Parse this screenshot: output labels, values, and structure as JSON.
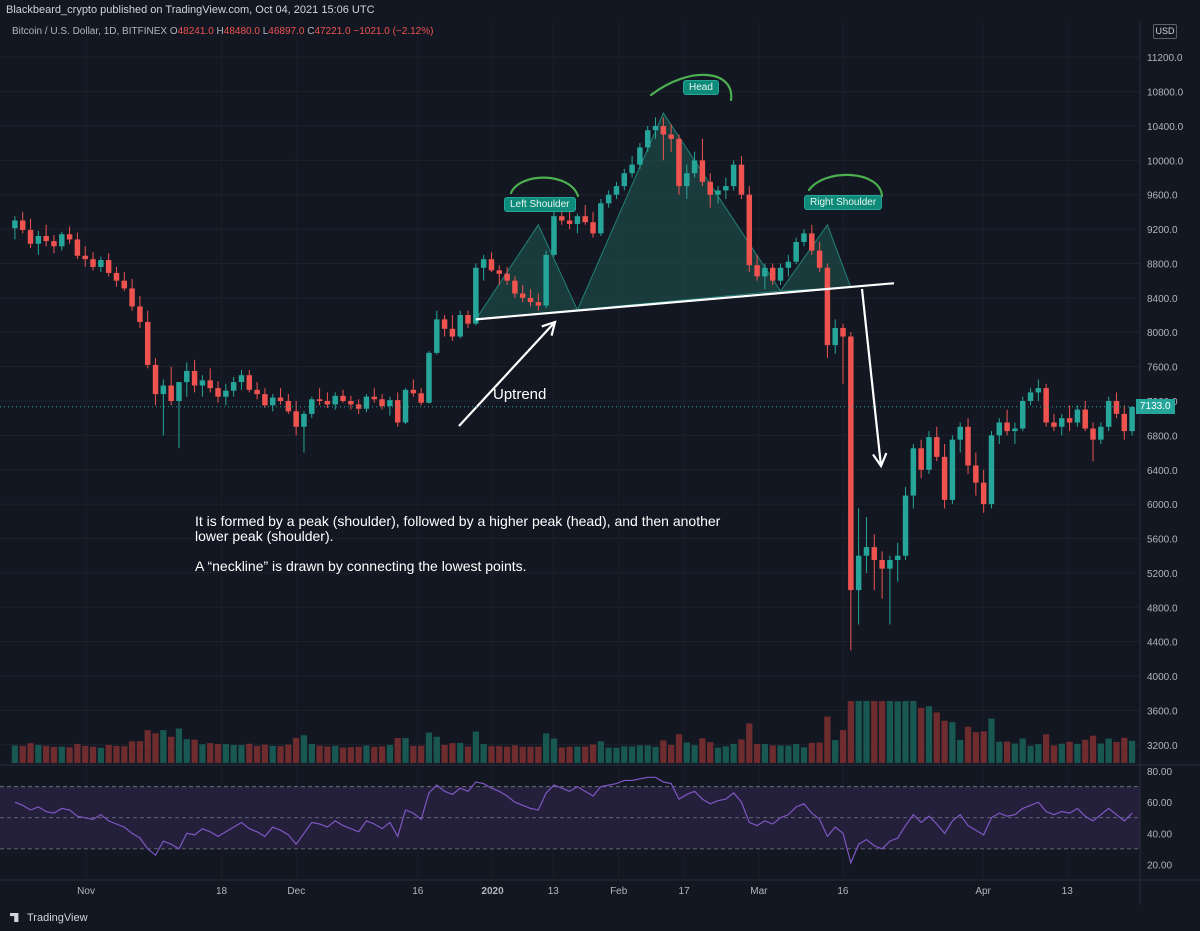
{
  "header": {
    "publisher_text": "Blackbeard_crypto published on TradingView.com, Oct 04, 2021 15:06 UTC"
  },
  "legend": {
    "symbol": "Bitcoin / U.S. Dollar, 1D, BITFINEX",
    "open_label": "O",
    "open": "48241.0",
    "high_label": "H",
    "high": "48480.0",
    "low_label": "L",
    "low": "46897.0",
    "close_label": "C",
    "close": "47221.0",
    "change": "−1021.0 (−2.12%)"
  },
  "currency_button": "USD",
  "last_price_tag": "7133.0",
  "branding": "TradingView",
  "annotations": {
    "left_shoulder": "Left Shoulder",
    "head": "Head",
    "right_shoulder": "Right Shoulder",
    "uptrend": "Uptrend",
    "note_line1": "It is formed by a peak (shoulder), followed by a higher peak (head), and then another lower peak (shoulder).",
    "note_line2": "A “neckline” is drawn by connecting the lowest points."
  },
  "colors": {
    "background": "#131722",
    "up": "#26a69a",
    "down": "#ef5350",
    "pattern_fill": "#1f4f4c",
    "rsi_line": "#7e57c2",
    "rsi_band": "#241f3a",
    "arc": "#4caf50"
  },
  "chart_data": {
    "type": "candlestick",
    "price_axis": {
      "ticks": [
        "11200.0",
        "10800.0",
        "10400.0",
        "10000.0",
        "9600.0",
        "9200.0",
        "8800.0",
        "8400.0",
        "8000.0",
        "7600.0",
        "7200.0",
        "6800.0",
        "6400.0",
        "6000.0",
        "5600.0",
        "5200.0",
        "4800.0",
        "4400.0",
        "4000.0",
        "3600.0",
        "3200.0"
      ],
      "range": [
        3000,
        11400
      ]
    },
    "rsi_axis": {
      "ticks": [
        "80.00",
        "60.00",
        "40.00",
        "20.00"
      ],
      "range": [
        10,
        82
      ],
      "bands": [
        30,
        70
      ]
    },
    "time_axis": {
      "ticks": [
        "Nov",
        "18",
        "Dec",
        "16",
        "2020",
        "13",
        "Feb",
        "17",
        "Mar",
        "16",
        "Apr",
        "13"
      ],
      "bold": [
        "2020"
      ]
    },
    "price_series": [
      [
        9210,
        9350,
        9080,
        9300
      ],
      [
        9300,
        9400,
        9150,
        9190
      ],
      [
        9190,
        9320,
        8980,
        9030
      ],
      [
        9030,
        9180,
        8900,
        9120
      ],
      [
        9120,
        9250,
        9000,
        9060
      ],
      [
        9060,
        9130,
        8920,
        9000
      ],
      [
        9000,
        9170,
        8950,
        9140
      ],
      [
        9140,
        9230,
        9030,
        9080
      ],
      [
        9080,
        9160,
        8850,
        8890
      ],
      [
        8890,
        9000,
        8760,
        8850
      ],
      [
        8850,
        8930,
        8720,
        8760
      ],
      [
        8760,
        8880,
        8700,
        8840
      ],
      [
        8840,
        8920,
        8650,
        8690
      ],
      [
        8690,
        8760,
        8530,
        8600
      ],
      [
        8600,
        8700,
        8480,
        8510
      ],
      [
        8510,
        8620,
        8250,
        8300
      ],
      [
        8300,
        8420,
        8050,
        8120
      ],
      [
        8120,
        8250,
        7580,
        7620
      ],
      [
        7620,
        7700,
        7150,
        7280
      ],
      [
        7280,
        7450,
        6800,
        7380
      ],
      [
        7380,
        7600,
        7150,
        7200
      ],
      [
        7200,
        7350,
        6650,
        7420
      ],
      [
        7420,
        7650,
        7250,
        7550
      ],
      [
        7550,
        7680,
        7300,
        7380
      ],
      [
        7380,
        7500,
        7250,
        7440
      ],
      [
        7440,
        7580,
        7300,
        7350
      ],
      [
        7350,
        7430,
        7180,
        7250
      ],
      [
        7250,
        7400,
        7150,
        7320
      ],
      [
        7320,
        7480,
        7250,
        7420
      ],
      [
        7420,
        7560,
        7330,
        7500
      ],
      [
        7500,
        7560,
        7300,
        7330
      ],
      [
        7330,
        7420,
        7220,
        7280
      ],
      [
        7280,
        7350,
        7120,
        7150
      ],
      [
        7150,
        7280,
        7080,
        7240
      ],
      [
        7240,
        7350,
        7160,
        7200
      ],
      [
        7200,
        7280,
        7050,
        7080
      ],
      [
        7080,
        7200,
        6800,
        6900
      ],
      [
        6900,
        7080,
        6600,
        7050
      ],
      [
        7050,
        7250,
        7000,
        7220
      ],
      [
        7220,
        7350,
        7150,
        7200
      ],
      [
        7200,
        7300,
        7120,
        7160
      ],
      [
        7160,
        7300,
        7100,
        7260
      ],
      [
        7260,
        7330,
        7180,
        7200
      ],
      [
        7200,
        7260,
        7100,
        7160
      ],
      [
        7160,
        7220,
        7050,
        7110
      ],
      [
        7110,
        7280,
        7070,
        7250
      ],
      [
        7250,
        7350,
        7180,
        7220
      ],
      [
        7220,
        7280,
        7100,
        7140
      ],
      [
        7140,
        7250,
        7030,
        7210
      ],
      [
        7210,
        7300,
        6900,
        6950
      ],
      [
        6950,
        7350,
        6930,
        7330
      ],
      [
        7330,
        7450,
        7250,
        7290
      ],
      [
        7290,
        7350,
        7150,
        7180
      ],
      [
        7180,
        7780,
        7170,
        7760
      ],
      [
        7760,
        8250,
        7740,
        8150
      ],
      [
        8150,
        8200,
        7950,
        8040
      ],
      [
        8040,
        8200,
        7900,
        7950
      ],
      [
        7950,
        8250,
        7930,
        8200
      ],
      [
        8200,
        8250,
        8050,
        8100
      ],
      [
        8100,
        8800,
        8080,
        8750
      ],
      [
        8750,
        8900,
        8600,
        8850
      ],
      [
        8850,
        8930,
        8700,
        8720
      ],
      [
        8720,
        8780,
        8550,
        8680
      ],
      [
        8680,
        8760,
        8550,
        8600
      ],
      [
        8600,
        8650,
        8400,
        8450
      ],
      [
        8450,
        8550,
        8350,
        8400
      ],
      [
        8400,
        8500,
        8300,
        8350
      ],
      [
        8350,
        8450,
        8250,
        8310
      ],
      [
        8310,
        8950,
        8280,
        8900
      ],
      [
        8900,
        9400,
        8880,
        9350
      ],
      [
        9350,
        9450,
        9250,
        9300
      ],
      [
        9300,
        9420,
        9200,
        9260
      ],
      [
        9260,
        9380,
        9150,
        9350
      ],
      [
        9350,
        9480,
        9250,
        9280
      ],
      [
        9280,
        9400,
        9100,
        9150
      ],
      [
        9150,
        9550,
        9120,
        9500
      ],
      [
        9500,
        9650,
        9450,
        9600
      ],
      [
        9600,
        9750,
        9550,
        9700
      ],
      [
        9700,
        9900,
        9650,
        9850
      ],
      [
        9850,
        10050,
        9800,
        9950
      ],
      [
        9950,
        10200,
        9900,
        10150
      ],
      [
        10150,
        10400,
        10100,
        10350
      ],
      [
        10350,
        10500,
        10250,
        10400
      ],
      [
        10400,
        10500,
        10000,
        10300
      ],
      [
        10300,
        10420,
        10100,
        10250
      ],
      [
        10250,
        10300,
        9600,
        9700
      ],
      [
        9700,
        9950,
        9550,
        9850
      ],
      [
        9850,
        10100,
        9800,
        10000
      ],
      [
        10000,
        10250,
        9700,
        9750
      ],
      [
        9750,
        9850,
        9450,
        9600
      ],
      [
        9600,
        9700,
        9500,
        9650
      ],
      [
        9650,
        9800,
        9550,
        9700
      ],
      [
        9700,
        10000,
        9650,
        9950
      ],
      [
        9950,
        10050,
        9550,
        9600
      ],
      [
        9600,
        9700,
        8700,
        8780
      ],
      [
        8780,
        8900,
        8600,
        8650
      ],
      [
        8650,
        8800,
        8500,
        8750
      ],
      [
        8750,
        8800,
        8550,
        8600
      ],
      [
        8600,
        8800,
        8550,
        8750
      ],
      [
        8750,
        8900,
        8650,
        8820
      ],
      [
        8820,
        9100,
        8790,
        9050
      ],
      [
        9050,
        9200,
        9000,
        9150
      ],
      [
        9150,
        9250,
        8900,
        8950
      ],
      [
        8950,
        9050,
        8700,
        8750
      ],
      [
        8750,
        8800,
        7700,
        7850
      ],
      [
        7850,
        8150,
        7750,
        8050
      ],
      [
        8050,
        8100,
        7400,
        7950
      ],
      [
        7950,
        8000,
        4300,
        5000
      ],
      [
        5000,
        5950,
        4600,
        5400
      ],
      [
        5400,
        5850,
        5200,
        5500
      ],
      [
        5500,
        5650,
        5000,
        5350
      ],
      [
        5350,
        5450,
        4900,
        5250
      ],
      [
        5250,
        5400,
        4600,
        5350
      ],
      [
        5350,
        5550,
        5100,
        5400
      ],
      [
        5400,
        6200,
        5350,
        6100
      ],
      [
        6100,
        6700,
        5950,
        6650
      ],
      [
        6650,
        6750,
        6300,
        6400
      ],
      [
        6400,
        6850,
        6350,
        6780
      ],
      [
        6780,
        6900,
        6500,
        6550
      ],
      [
        6550,
        6700,
        5950,
        6050
      ],
      [
        6050,
        6800,
        6000,
        6750
      ],
      [
        6750,
        6950,
        6600,
        6900
      ],
      [
        6900,
        7000,
        6350,
        6450
      ],
      [
        6450,
        6600,
        6100,
        6250
      ],
      [
        6250,
        6400,
        5900,
        6000
      ],
      [
        6000,
        6850,
        5950,
        6800
      ],
      [
        6800,
        7000,
        6700,
        6950
      ],
      [
        6950,
        7100,
        6800,
        6850
      ],
      [
        6850,
        6950,
        6700,
        6880
      ],
      [
        6880,
        7250,
        6850,
        7200
      ],
      [
        7200,
        7350,
        7150,
        7300
      ],
      [
        7300,
        7450,
        7200,
        7350
      ],
      [
        7350,
        7400,
        6900,
        6950
      ],
      [
        6950,
        7050,
        6850,
        6900
      ],
      [
        6900,
        7050,
        6800,
        7000
      ],
      [
        7000,
        7150,
        6850,
        6950
      ],
      [
        6950,
        7150,
        6900,
        7100
      ],
      [
        7100,
        7200,
        6850,
        6880
      ],
      [
        6880,
        6950,
        6500,
        6750
      ],
      [
        6750,
        6950,
        6700,
        6900
      ],
      [
        6900,
        7250,
        6850,
        7200
      ],
      [
        7200,
        7300,
        7000,
        7050
      ],
      [
        7050,
        7150,
        6750,
        6850
      ],
      [
        6850,
        7133,
        6800,
        7133
      ]
    ],
    "rsi_series": [
      60,
      58,
      55,
      57,
      54,
      53,
      56,
      55,
      51,
      50,
      49,
      52,
      48,
      46,
      44,
      40,
      37,
      30,
      26,
      35,
      33,
      30,
      40,
      39,
      43,
      41,
      38,
      41,
      44,
      47,
      43,
      41,
      38,
      44,
      42,
      39,
      33,
      40,
      47,
      46,
      44,
      48,
      45,
      43,
      41,
      48,
      46,
      43,
      47,
      38,
      55,
      53,
      49,
      66,
      71,
      67,
      65,
      69,
      67,
      73,
      72,
      69,
      67,
      64,
      60,
      58,
      56,
      55,
      66,
      71,
      69,
      67,
      70,
      67,
      64,
      70,
      71,
      72,
      74,
      74,
      75,
      76,
      76,
      73,
      72,
      62,
      65,
      67,
      62,
      59,
      61,
      62,
      66,
      60,
      47,
      45,
      48,
      46,
      50,
      52,
      57,
      59,
      53,
      49,
      38,
      44,
      40,
      21,
      33,
      36,
      32,
      30,
      35,
      37,
      45,
      52,
      47,
      51,
      46,
      40,
      48,
      52,
      45,
      42,
      39,
      50,
      53,
      51,
      52,
      56,
      58,
      60,
      54,
      52,
      54,
      53,
      56,
      51,
      48,
      52,
      56,
      52,
      48,
      53
    ]
  }
}
